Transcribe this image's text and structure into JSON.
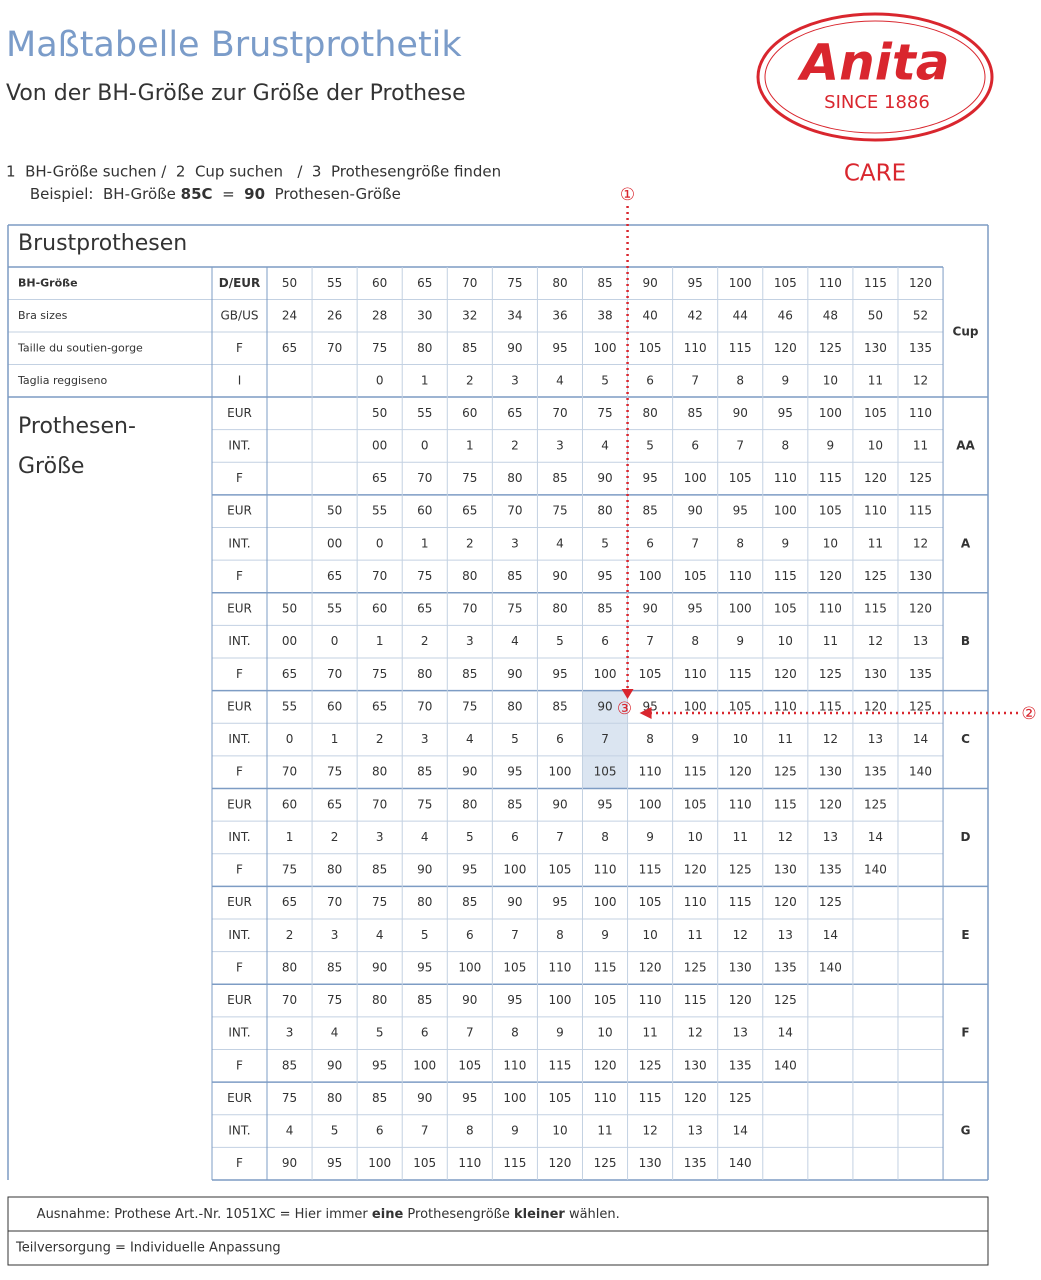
{
  "header": {
    "title": "Maßtabelle Brustprothetik",
    "subtitle": "Von der BH-Größe zur Größe der Prothese",
    "logo": {
      "brand": "Anita",
      "since": "SINCE 1886",
      "line": "CARE"
    }
  },
  "instructions": {
    "steps": "1  BH-Größe suchen /  2  Cup suchen   /  3  Prothesengröße finden",
    "example": [
      "Beispiel:  BH-Größe ",
      "85C",
      "  =  ",
      "90",
      "  Prothesen-Größe"
    ]
  },
  "markers": [
    "①",
    "②",
    "③"
  ],
  "table": {
    "title": "Brustprothesen",
    "cup_header": "Cup",
    "prosthesis_label": [
      "Prothesen-",
      "Größe"
    ],
    "bra_rows": [
      {
        "label": "BH-Größe",
        "system": "D/EUR",
        "values": [
          50,
          55,
          60,
          65,
          70,
          75,
          80,
          85,
          90,
          95,
          100,
          105,
          110,
          115,
          120
        ]
      },
      {
        "label": "Bra sizes",
        "system": "GB/US",
        "values": [
          24,
          26,
          28,
          30,
          32,
          34,
          36,
          38,
          40,
          42,
          44,
          46,
          48,
          50,
          52
        ]
      },
      {
        "label": "Taille du soutien-gorge",
        "system": "F",
        "values": [
          65,
          70,
          75,
          80,
          85,
          90,
          95,
          100,
          105,
          110,
          115,
          120,
          125,
          130,
          135
        ]
      },
      {
        "label": "Taglia reggiseno",
        "system": "I",
        "values": [
          null,
          null,
          0,
          1,
          2,
          3,
          4,
          5,
          6,
          7,
          8,
          9,
          10,
          11,
          12
        ]
      }
    ],
    "groups": [
      {
        "cup": "AA",
        "rows": [
          {
            "system": "EUR",
            "values": [
              null,
              null,
              50,
              55,
              60,
              65,
              70,
              75,
              80,
              85,
              90,
              95,
              100,
              105,
              110
            ]
          },
          {
            "system": "INT.",
            "values": [
              null,
              null,
              "00",
              0,
              1,
              2,
              3,
              4,
              5,
              6,
              7,
              8,
              9,
              10,
              11
            ]
          },
          {
            "system": "F",
            "values": [
              null,
              null,
              65,
              70,
              75,
              80,
              85,
              90,
              95,
              100,
              105,
              110,
              115,
              120,
              125
            ]
          }
        ]
      },
      {
        "cup": "A",
        "rows": [
          {
            "system": "EUR",
            "values": [
              null,
              50,
              55,
              60,
              65,
              70,
              75,
              80,
              85,
              90,
              95,
              100,
              105,
              110,
              115
            ]
          },
          {
            "system": "INT.",
            "values": [
              null,
              "00",
              0,
              1,
              2,
              3,
              4,
              5,
              6,
              7,
              8,
              9,
              10,
              11,
              12
            ]
          },
          {
            "system": "F",
            "values": [
              null,
              65,
              70,
              75,
              80,
              85,
              90,
              95,
              100,
              105,
              110,
              115,
              120,
              125,
              130
            ]
          }
        ]
      },
      {
        "cup": "B",
        "rows": [
          {
            "system": "EUR",
            "values": [
              50,
              55,
              60,
              65,
              70,
              75,
              80,
              85,
              90,
              95,
              100,
              105,
              110,
              115,
              120
            ]
          },
          {
            "system": "INT.",
            "values": [
              "00",
              0,
              1,
              2,
              3,
              4,
              5,
              6,
              7,
              8,
              9,
              10,
              11,
              12,
              13
            ]
          },
          {
            "system": "F",
            "values": [
              65,
              70,
              75,
              80,
              85,
              90,
              95,
              100,
              105,
              110,
              115,
              120,
              125,
              130,
              135
            ]
          }
        ]
      },
      {
        "cup": "C",
        "rows": [
          {
            "system": "EUR",
            "values": [
              55,
              60,
              65,
              70,
              75,
              80,
              85,
              90,
              95,
              100,
              105,
              110,
              115,
              120,
              125
            ]
          },
          {
            "system": "INT.",
            "values": [
              0,
              1,
              2,
              3,
              4,
              5,
              6,
              7,
              8,
              9,
              10,
              11,
              12,
              13,
              14
            ]
          },
          {
            "system": "F",
            "values": [
              70,
              75,
              80,
              85,
              90,
              95,
              100,
              105,
              110,
              115,
              120,
              125,
              130,
              135,
              140
            ]
          }
        ]
      },
      {
        "cup": "D",
        "rows": [
          {
            "system": "EUR",
            "values": [
              60,
              65,
              70,
              75,
              80,
              85,
              90,
              95,
              100,
              105,
              110,
              115,
              120,
              125,
              null
            ]
          },
          {
            "system": "INT.",
            "values": [
              1,
              2,
              3,
              4,
              5,
              6,
              7,
              8,
              9,
              10,
              11,
              12,
              13,
              14,
              null
            ]
          },
          {
            "system": "F",
            "values": [
              75,
              80,
              85,
              90,
              95,
              100,
              105,
              110,
              115,
              120,
              125,
              130,
              135,
              140,
              null
            ]
          }
        ]
      },
      {
        "cup": "E",
        "rows": [
          {
            "system": "EUR",
            "values": [
              65,
              70,
              75,
              80,
              85,
              90,
              95,
              100,
              105,
              110,
              115,
              120,
              125,
              null,
              null
            ]
          },
          {
            "system": "INT.",
            "values": [
              2,
              3,
              4,
              5,
              6,
              7,
              8,
              9,
              10,
              11,
              12,
              13,
              14,
              null,
              null
            ]
          },
          {
            "system": "F",
            "values": [
              80,
              85,
              90,
              95,
              100,
              105,
              110,
              115,
              120,
              125,
              130,
              135,
              140,
              null,
              null
            ]
          }
        ]
      },
      {
        "cup": "F",
        "rows": [
          {
            "system": "EUR",
            "values": [
              70,
              75,
              80,
              85,
              90,
              95,
              100,
              105,
              110,
              115,
              120,
              125,
              null,
              null,
              null
            ]
          },
          {
            "system": "INT.",
            "values": [
              3,
              4,
              5,
              6,
              7,
              8,
              9,
              10,
              11,
              12,
              13,
              14,
              null,
              null,
              null
            ]
          },
          {
            "system": "F",
            "values": [
              85,
              90,
              95,
              100,
              105,
              110,
              115,
              120,
              125,
              130,
              135,
              140,
              null,
              null,
              null
            ]
          }
        ]
      },
      {
        "cup": "G",
        "rows": [
          {
            "system": "EUR",
            "values": [
              75,
              80,
              85,
              90,
              95,
              100,
              105,
              110,
              115,
              120,
              125,
              null,
              null,
              null,
              null
            ]
          },
          {
            "system": "INT.",
            "values": [
              4,
              5,
              6,
              7,
              8,
              9,
              10,
              11,
              12,
              13,
              14,
              null,
              null,
              null,
              null
            ]
          },
          {
            "system": "F",
            "values": [
              90,
              95,
              100,
              105,
              110,
              115,
              120,
              125,
              130,
              135,
              140,
              null,
              null,
              null,
              null
            ]
          }
        ]
      }
    ]
  },
  "notes": {
    "exception": [
      "Ausnahme: Prothese Art.-Nr. 1051XC = Hier immer ",
      "eine",
      " Prothesengröße ",
      "kleiner",
      " wählen."
    ],
    "partial": "Teilversorgung = Individuelle Anpassung"
  }
}
